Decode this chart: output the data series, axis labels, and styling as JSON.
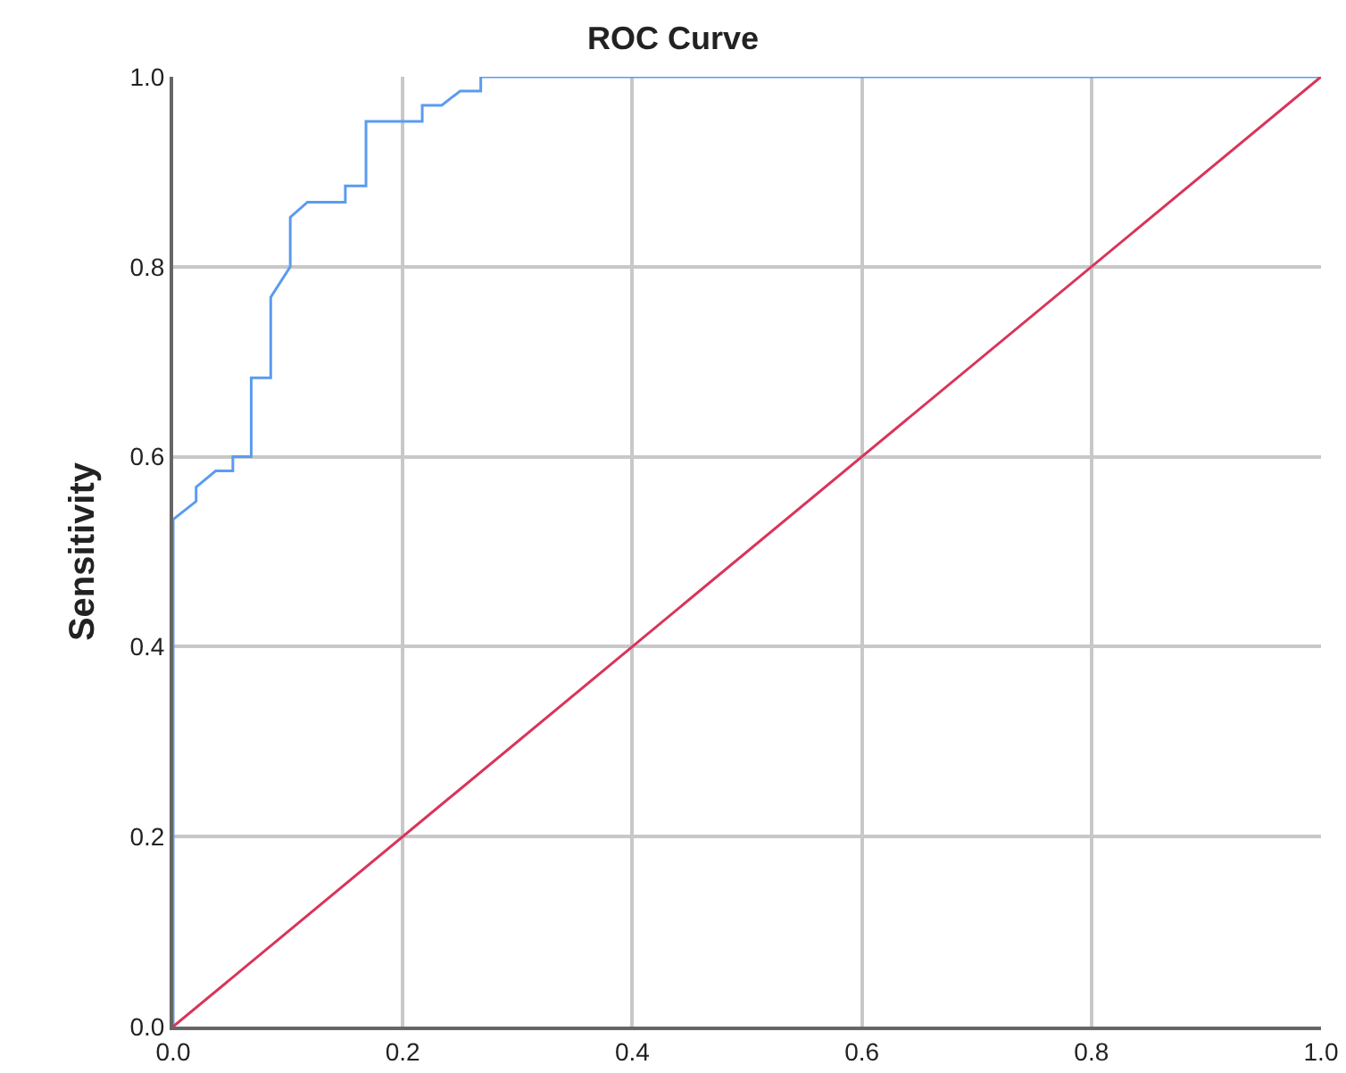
{
  "chart_data": {
    "type": "line",
    "title": "ROC Curve",
    "ylabel": "Sensitivity",
    "series": [
      {
        "color": "#5b9bef",
        "x": [
          0,
          0,
          0.02,
          0.02,
          0.037,
          0.052,
          0.052,
          0.068,
          0.068,
          0.085,
          0.085,
          0.102,
          0.102,
          0.117,
          0.15,
          0.15,
          0.168,
          0.168,
          0.217,
          0.217,
          0.234,
          0.25,
          0.268,
          0.268,
          1
        ],
        "values": [
          0,
          0.534,
          0.553,
          0.568,
          0.585,
          0.585,
          0.6,
          0.6,
          0.683,
          0.683,
          0.768,
          0.8,
          0.852,
          0.868,
          0.868,
          0.885,
          0.885,
          0.953,
          0.953,
          0.97,
          0.97,
          0.985,
          0.985,
          1,
          1
        ]
      },
      {
        "color": "#d9345a",
        "x": [
          0,
          1
        ],
        "values": [
          0,
          1
        ]
      }
    ],
    "xlim": [
      0,
      1
    ],
    "ylim": [
      0,
      1
    ],
    "xticks": [
      {
        "value": 0,
        "label": "0.0"
      },
      0.2,
      0.4,
      0.6,
      0.8,
      {
        "value": 1,
        "label": "1.0"
      }
    ],
    "yticks": [
      {
        "value": 0,
        "label": "0.0"
      },
      0.2,
      0.4,
      0.6,
      0.8,
      {
        "value": 1,
        "label": "1.0"
      }
    ],
    "grid": true,
    "marker": "none",
    "line_style": "solid"
  }
}
